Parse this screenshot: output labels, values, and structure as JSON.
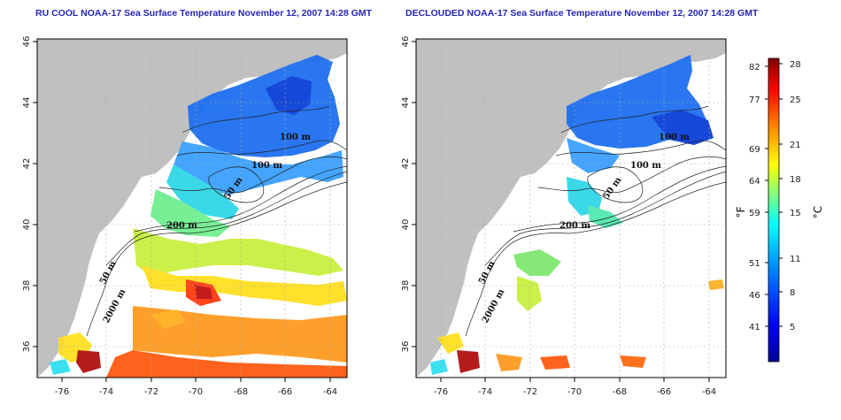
{
  "left_map": {
    "title": "RU COOL NOAA-17 Sea Surface Temperature November 12, 2007 14:28 GMT"
  },
  "right_map": {
    "title": "DECLOUDED NOAA-17 Sea Surface Temperature November 12, 2007 14:28 GMT"
  },
  "axes": {
    "lon_ticks": [
      "-76",
      "-74",
      "-72",
      "-70",
      "-68",
      "-66",
      "-64"
    ],
    "lat_ticks": [
      "46",
      "44",
      "42",
      "40",
      "38",
      "36"
    ]
  },
  "contours": {
    "label_100": "100 m",
    "label_50": "50 m",
    "label_200": "200 m",
    "label_2000": "2000 m"
  },
  "colorbar": {
    "fahrenheit_unit": "°F",
    "celsius_unit": "°C",
    "fahrenheit_ticks": [
      "82",
      "77",
      "69",
      "64",
      "59",
      "51",
      "46",
      "41"
    ],
    "celsius_ticks": [
      "28",
      "25",
      "21",
      "18",
      "15",
      "11",
      "8",
      "5"
    ],
    "colors": [
      "#00008f",
      "#0000ff",
      "#0080ff",
      "#00ffff",
      "#80ff80",
      "#ffff00",
      "#ff8000",
      "#ff0000",
      "#800000"
    ]
  }
}
